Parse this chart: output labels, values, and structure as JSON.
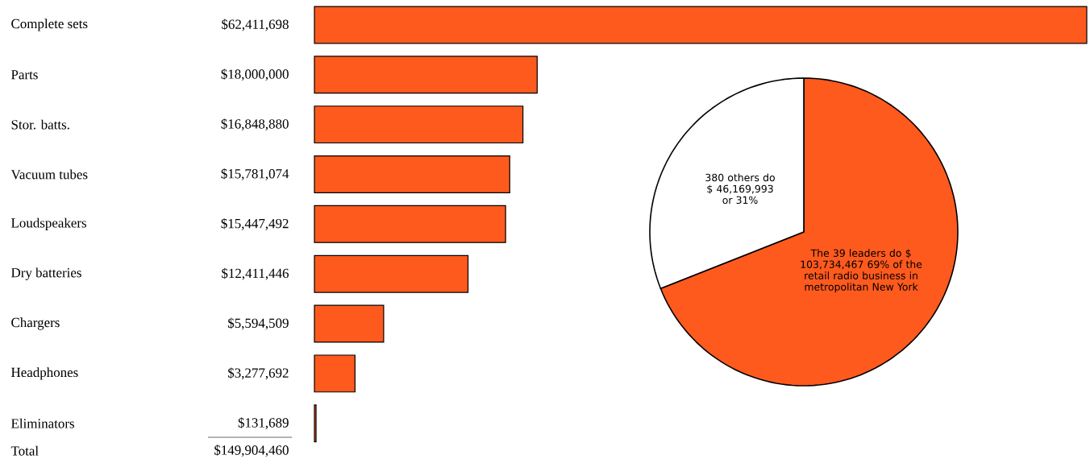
{
  "chart_data": [
    {
      "type": "bar",
      "orientation": "horizontal",
      "categories": [
        "Complete sets",
        "Parts",
        "Stor. batts.",
        "Vacuum tubes",
        "Loudspeakers",
        "Dry batteries",
        "Chargers",
        "Headphones",
        "Eliminators"
      ],
      "values": [
        62411698,
        18000000,
        16848880,
        15781074,
        15447492,
        12411446,
        5594509,
        3277692,
        131689
      ],
      "value_labels": [
        "$62,411,698",
        "$18,000,000",
        "$16,848,880",
        "$15,781,074",
        "$15,447,492",
        "$12,411,446",
        "$5,594,509",
        "$3,277,692",
        "$131,689"
      ],
      "color": "#ff5a1e",
      "annotations": [
        "Total",
        "$149,904,460"
      ]
    },
    {
      "type": "pie",
      "categories": [
        "The 39 leaders do $ 103,734,467 69% of the retail radio business in metropolitan New York",
        "380 others do $ 46,169,993 or 31%"
      ],
      "values": [
        69,
        31
      ],
      "colors": [
        "#ff5a1e",
        "#ffffff"
      ]
    }
  ]
}
